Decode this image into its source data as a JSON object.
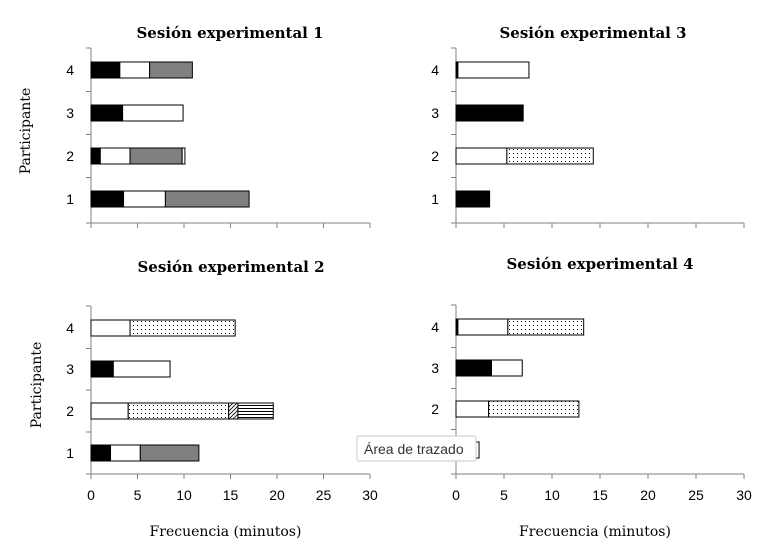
{
  "chart_data": [
    {
      "type": "bar",
      "orientation": "horizontal",
      "stacked": true,
      "title": "Sesión experimental 1",
      "ylabel": "Participante",
      "xlabel": "",
      "categories": [
        "1",
        "2",
        "3",
        "4"
      ],
      "xlim": [
        0,
        30
      ],
      "x_ticks": [],
      "segments": [
        [
          {
            "value": 3.5,
            "fill": "black"
          },
          {
            "value": 4.5,
            "fill": "white"
          },
          {
            "value": 9.0,
            "fill": "gray"
          }
        ],
        [
          {
            "value": 1.0,
            "fill": "black"
          },
          {
            "value": 3.2,
            "fill": "white"
          },
          {
            "value": 5.6,
            "fill": "gray"
          },
          {
            "value": 0.3,
            "fill": "white"
          }
        ],
        [
          {
            "value": 3.4,
            "fill": "black"
          },
          {
            "value": 6.5,
            "fill": "white"
          }
        ],
        [
          {
            "value": 3.1,
            "fill": "black"
          },
          {
            "value": 3.2,
            "fill": "white"
          },
          {
            "value": 4.6,
            "fill": "gray"
          }
        ]
      ]
    },
    {
      "type": "bar",
      "orientation": "horizontal",
      "stacked": true,
      "title": "Sesión experimental 3",
      "ylabel": "",
      "xlabel": "",
      "categories": [
        "1",
        "2",
        "3",
        "4"
      ],
      "xlim": [
        0,
        30
      ],
      "x_ticks": [],
      "segments": [
        [
          {
            "value": 3.5,
            "fill": "black"
          }
        ],
        [
          {
            "value": 5.3,
            "fill": "white"
          },
          {
            "value": 9.0,
            "fill": "dots"
          }
        ],
        [
          {
            "value": 7.0,
            "fill": "black"
          }
        ],
        [
          {
            "value": 0.2,
            "fill": "black"
          },
          {
            "value": 7.4,
            "fill": "white"
          }
        ]
      ]
    },
    {
      "type": "bar",
      "orientation": "horizontal",
      "stacked": true,
      "title": "Sesión experimental 2",
      "ylabel": "Participante",
      "xlabel": "Frecuencia (minutos)",
      "categories": [
        "1",
        "2",
        "3",
        "4"
      ],
      "xlim": [
        0,
        30
      ],
      "x_ticks": [
        "0",
        "5",
        "10",
        "15",
        "20",
        "25",
        "30"
      ],
      "segments": [
        [
          {
            "value": 2.1,
            "fill": "black"
          },
          {
            "value": 3.2,
            "fill": "white"
          },
          {
            "value": 6.3,
            "fill": "gray"
          }
        ],
        [
          {
            "value": 4.0,
            "fill": "white"
          },
          {
            "value": 10.8,
            "fill": "dots"
          },
          {
            "value": 1.0,
            "fill": "hatch"
          },
          {
            "value": 3.8,
            "fill": "hlines"
          }
        ],
        [
          {
            "value": 2.4,
            "fill": "black"
          },
          {
            "value": 6.1,
            "fill": "white"
          }
        ],
        [
          {
            "value": 4.2,
            "fill": "white"
          },
          {
            "value": 11.3,
            "fill": "dots"
          }
        ]
      ]
    },
    {
      "type": "bar",
      "orientation": "horizontal",
      "stacked": true,
      "title": "Sesión experimental 4",
      "ylabel": "",
      "xlabel": "Frecuencia (minutos)",
      "categories": [
        "1",
        "2",
        "3",
        "4"
      ],
      "xlim": [
        0,
        30
      ],
      "x_ticks": [
        "0",
        "5",
        "10",
        "15",
        "20",
        "25",
        "30"
      ],
      "segments": [
        [
          {
            "value": 0.2,
            "fill": "black"
          },
          {
            "value": 2.2,
            "fill": "white"
          }
        ],
        [
          {
            "value": 3.4,
            "fill": "white"
          },
          {
            "value": 9.4,
            "fill": "dots"
          }
        ],
        [
          {
            "value": 3.7,
            "fill": "black"
          },
          {
            "value": 3.2,
            "fill": "white"
          }
        ],
        [
          {
            "value": 0.2,
            "fill": "black"
          },
          {
            "value": 5.2,
            "fill": "white"
          },
          {
            "value": 7.9,
            "fill": "dots"
          }
        ]
      ]
    }
  ],
  "tooltip": {
    "text": "Área de trazado"
  }
}
